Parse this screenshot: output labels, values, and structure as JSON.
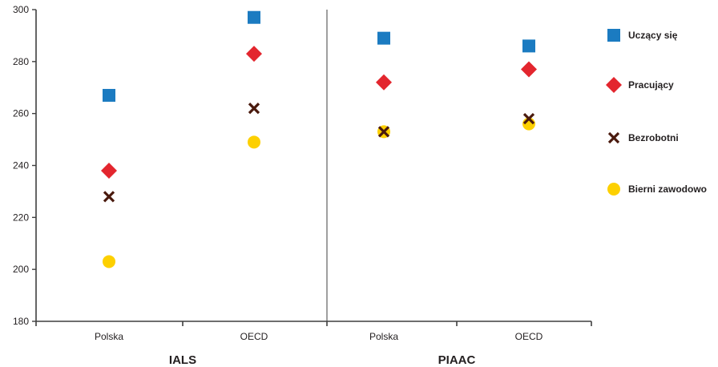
{
  "chart_data": {
    "type": "scatter",
    "ylim": [
      180,
      300
    ],
    "yticks": [
      180,
      200,
      220,
      240,
      260,
      280,
      300
    ],
    "groups": [
      {
        "label": "IALS",
        "categories": [
          "Polska",
          "OECD"
        ]
      },
      {
        "label": "PIAAC",
        "categories": [
          "Polska",
          "OECD"
        ]
      }
    ],
    "categories": [
      "Polska",
      "OECD",
      "Polska",
      "OECD"
    ],
    "series": [
      {
        "name": "Uczący się",
        "marker": "square",
        "color": "#1b7bc1",
        "values": [
          267,
          297,
          289,
          286
        ]
      },
      {
        "name": "Pracujący",
        "marker": "diamond",
        "color": "#e3262e",
        "values": [
          238,
          283,
          272,
          277
        ]
      },
      {
        "name": "Bezrobotni",
        "marker": "cross",
        "color": "#4a1a0e",
        "values": [
          228,
          262,
          253,
          258
        ]
      },
      {
        "name": "Bierni zawodowo",
        "marker": "circle",
        "color": "#fdd000",
        "values": [
          203,
          249,
          253,
          256
        ]
      }
    ],
    "grid": false,
    "legend_position": "right"
  }
}
